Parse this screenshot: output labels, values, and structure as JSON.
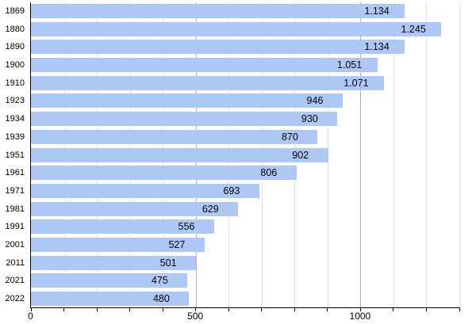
{
  "chart_data": {
    "type": "bar",
    "orientation": "horizontal",
    "title": "",
    "xlabel": "",
    "ylabel": "",
    "categories": [
      "1869",
      "1880",
      "1890",
      "1900",
      "1910",
      "1923",
      "1934",
      "1939",
      "1951",
      "1961",
      "1971",
      "1981",
      "1991",
      "2001",
      "2011",
      "2021",
      "2022"
    ],
    "values": [
      1134,
      1245,
      1134,
      1051,
      1071,
      946,
      930,
      870,
      902,
      806,
      693,
      629,
      556,
      527,
      501,
      475,
      480
    ],
    "value_labels": [
      "1.134",
      "1.245",
      "1.134",
      "1.051",
      "1.071",
      "946",
      "930",
      "870",
      "902",
      "806",
      "693",
      "629",
      "556",
      "527",
      "501",
      "475",
      "480"
    ],
    "xlim": [
      0,
      1300
    ],
    "x_tick_interval": 100,
    "x_tick_labels": [
      {
        "value": 0,
        "label": "0"
      },
      {
        "value": 500,
        "label": "500"
      },
      {
        "value": 1000,
        "label": "1000"
      }
    ],
    "major_gridlines": [
      500,
      1000
    ],
    "grid": true,
    "legend": false,
    "colors": {
      "bar": "#adc8f5",
      "gridline_minor": "#e2e2e2",
      "gridline_major": "#b3b3b3",
      "axis": "#000000",
      "text": "#000000",
      "background": "#ffffff"
    }
  }
}
